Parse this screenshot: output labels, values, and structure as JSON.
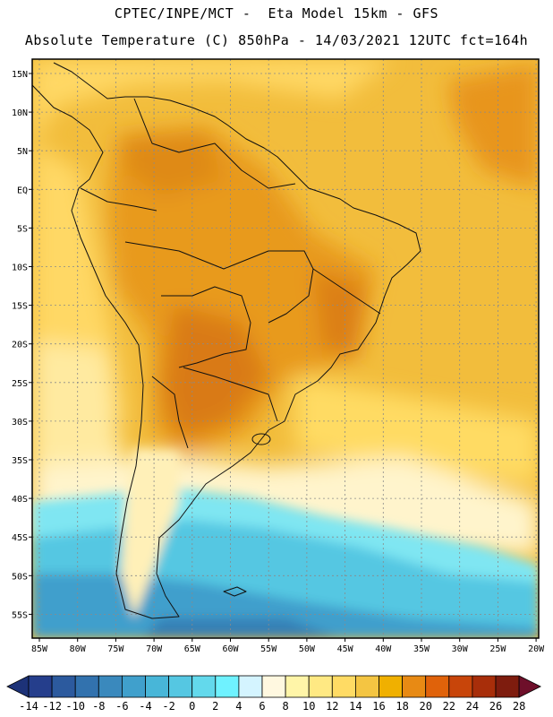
{
  "header": {
    "line1": "CPTEC/INPE/MCT -  Eta Model 15km - GFS",
    "line2": "Absolute Temperature (C) 850hPa - 14/03/2021 12UTC fct=164h"
  },
  "axes": {
    "lon_labels": [
      "85W",
      "80W",
      "75W",
      "70W",
      "65W",
      "60W",
      "55W",
      "50W",
      "45W",
      "40W",
      "35W",
      "30W",
      "25W",
      "20W"
    ],
    "lat_labels": [
      "15N",
      "10N",
      "5N",
      "EQ",
      "5S",
      "10S",
      "15S",
      "20S",
      "25S",
      "30S",
      "35S",
      "40S",
      "45S",
      "50S",
      "55S"
    ]
  },
  "colorbar": {
    "labels": [
      "-14",
      "-12",
      "-10",
      "-8",
      "-6",
      "-4",
      "-2",
      "0",
      "2",
      "4",
      "6",
      "8",
      "10",
      "12",
      "14",
      "16",
      "18",
      "20",
      "22",
      "24",
      "26",
      "28"
    ],
    "colors": [
      "#253e8c",
      "#2c5a9e",
      "#3272ae",
      "#3a89bd",
      "#40a0cc",
      "#48b6d8",
      "#55c7e2",
      "#63d9ec",
      "#6ff2ff",
      "#d4f4ff",
      "#fff8e0",
      "#fff5a8",
      "#ffe983",
      "#ffdb64",
      "#f4c542",
      "#f0b000",
      "#e88a14",
      "#e0620a",
      "#c8450a",
      "#a82e0a",
      "#7e1c0e"
    ],
    "low_color": "#1d3278",
    "high_color": "#6e0f2a"
  },
  "field": {
    "units": "C",
    "level": "850hPa"
  }
}
